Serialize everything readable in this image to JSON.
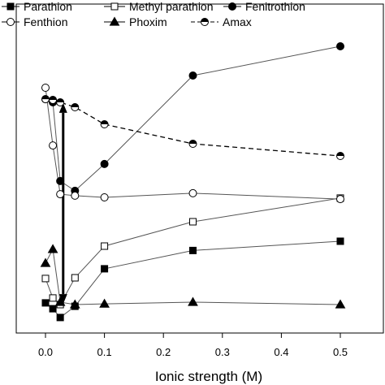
{
  "chart_data": {
    "type": "line",
    "title": "",
    "xlabel": "Ionic strength (M)",
    "ylabel": "",
    "xlim": [
      -0.048,
      0.54
    ],
    "ylim": [
      0,
      1
    ],
    "y_ticks_shown": false,
    "xticks": [
      0.0,
      0.1,
      0.2,
      0.3,
      0.4,
      0.5
    ],
    "xtick_labels": [
      "0.0",
      "0.1",
      "0.2",
      "0.3",
      "0.4",
      "0.5"
    ],
    "legend_position": "top",
    "series": [
      {
        "name": "Parathion",
        "marker": "square-filled",
        "line": "solid",
        "x": [
          0,
          0.0125,
          0.025,
          0.05,
          0.1,
          0.25,
          0.5
        ],
        "y": [
          0.077,
          0.053,
          0.017,
          0.063,
          0.217,
          0.292,
          0.33
        ]
      },
      {
        "name": "Methyl parathion",
        "marker": "square-open",
        "line": "solid",
        "x": [
          0,
          0.0125,
          0.025,
          0.05,
          0.1,
          0.25,
          0.5
        ],
        "y": [
          0.177,
          0.097,
          0.07,
          0.18,
          0.31,
          0.41,
          0.507
        ]
      },
      {
        "name": "Fenitrothion",
        "marker": "circle-filled",
        "line": "solid",
        "x": [
          0,
          0.0125,
          0.025,
          0.05,
          0.1,
          0.25,
          0.5
        ],
        "y": [
          0.913,
          0.9,
          0.577,
          0.537,
          0.647,
          1.01,
          1.13
        ]
      },
      {
        "name": "Fenthion",
        "marker": "circle-open",
        "line": "solid",
        "x": [
          0,
          0.0125,
          0.025,
          0.05,
          0.1,
          0.25,
          0.5
        ],
        "y": [
          0.96,
          0.723,
          0.523,
          0.517,
          0.51,
          0.527,
          0.503
        ]
      },
      {
        "name": "Phoxim",
        "marker": "triangle-filled",
        "line": "solid",
        "x": [
          0,
          0.0125,
          0.025,
          0.05,
          0.1,
          0.25,
          0.5
        ],
        "y": [
          0.24,
          0.297,
          0.08,
          0.07,
          0.073,
          0.08,
          0.07
        ]
      },
      {
        "name": "Amax",
        "marker": "circle-half",
        "line": "dashed",
        "x": [
          0,
          0.0125,
          0.025,
          0.05,
          0.1,
          0.25,
          0.5
        ],
        "y": [
          0.913,
          0.91,
          0.9,
          0.88,
          0.81,
          0.73,
          0.68
        ]
      }
    ],
    "annotations": [
      {
        "type": "double-arrow",
        "x": 0.03,
        "y_start": 0.897,
        "y_end": 0.073
      }
    ]
  }
}
